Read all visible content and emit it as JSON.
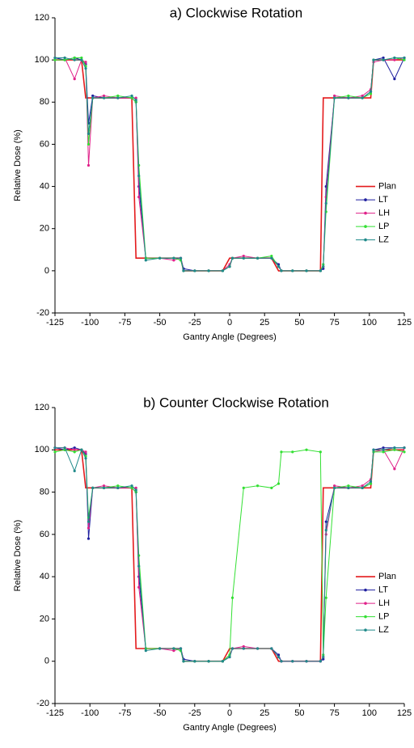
{
  "chart_data": [
    {
      "type": "line",
      "title": "a) Clockwise Rotation",
      "x_label": "Gantry Angle (Degrees)",
      "y_label": "Relative Dose (%)",
      "xlim": [
        -125,
        125
      ],
      "xticks": [
        -125,
        -100,
        -75,
        -50,
        -25,
        0,
        25,
        50,
        75,
        100,
        125
      ],
      "ylim": [
        -20,
        120
      ],
      "yticks": [
        -20,
        0,
        20,
        40,
        60,
        80,
        100,
        120
      ],
      "grid": false,
      "legend": "right",
      "x": [
        -125,
        -118,
        -111,
        -106,
        -103,
        -101,
        -98,
        -90,
        -80,
        -70,
        -67,
        -65,
        -60,
        -50,
        -40,
        -35,
        -33,
        -25,
        -15,
        -5,
        0,
        2,
        10,
        20,
        30,
        35,
        37,
        45,
        55,
        65,
        67,
        69,
        75,
        85,
        95,
        101,
        103,
        110,
        118,
        125
      ],
      "series": [
        {
          "name": "Plan",
          "color": "#e41a1c",
          "values": [
            100,
            100,
            100,
            100,
            82,
            82,
            82,
            82,
            82,
            82,
            6,
            6,
            6,
            6,
            6,
            6,
            0,
            0,
            0,
            0,
            6,
            6,
            6,
            6,
            6,
            0,
            0,
            0,
            0,
            0,
            82,
            82,
            82,
            82,
            82,
            82,
            100,
            100,
            100,
            100
          ]
        },
        {
          "name": "LT",
          "color": "#1f1f9f",
          "values": [
            101,
            100,
            101,
            100,
            98,
            70,
            83,
            82,
            82,
            82,
            80,
            40,
            6,
            6,
            6,
            6,
            1,
            0,
            0,
            0,
            2,
            6,
            6,
            6,
            6,
            3,
            0,
            0,
            0,
            0,
            1,
            40,
            82,
            82,
            82,
            85,
            100,
            101,
            91,
            101
          ]
        },
        {
          "name": "LH",
          "color": "#e0218a",
          "values": [
            101,
            101,
            91,
            100,
            99,
            50,
            82,
            83,
            82,
            82,
            82,
            35,
            6,
            6,
            5,
            6,
            0,
            0,
            0,
            0,
            3,
            6,
            7,
            6,
            6,
            2,
            0,
            0,
            0,
            0,
            2,
            35,
            83,
            82,
            83,
            86,
            99,
            100,
            100,
            101
          ]
        },
        {
          "name": "LP",
          "color": "#33e033",
          "values": [
            100,
            100,
            101,
            101,
            97,
            60,
            82,
            82,
            83,
            82,
            80,
            50,
            6,
            6,
            6,
            5,
            0,
            0,
            0,
            0,
            2,
            6,
            6,
            6,
            7,
            2,
            0,
            0,
            0,
            0,
            3,
            28,
            82,
            83,
            82,
            84,
            100,
            100,
            101,
            100
          ]
        },
        {
          "name": "LZ",
          "color": "#1f8a8a",
          "values": [
            101,
            101,
            100,
            100,
            96,
            65,
            82,
            82,
            82,
            83,
            81,
            45,
            5,
            6,
            6,
            6,
            0,
            0,
            0,
            0,
            2,
            6,
            6,
            6,
            6,
            2,
            0,
            0,
            0,
            0,
            2,
            32,
            82,
            82,
            82,
            85,
            100,
            100,
            101,
            101
          ]
        }
      ]
    },
    {
      "type": "line",
      "title": "b) Counter Clockwise Rotation",
      "x_label": "Gantry Angle (Degrees)",
      "y_label": "Relative Dose (%)",
      "xlim": [
        -125,
        125
      ],
      "xticks": [
        -125,
        -100,
        -75,
        -50,
        -25,
        0,
        25,
        50,
        75,
        100,
        125
      ],
      "ylim": [
        -20,
        120
      ],
      "yticks": [
        -20,
        0,
        20,
        40,
        60,
        80,
        100,
        120
      ],
      "grid": false,
      "legend": "right",
      "x": [
        -125,
        -118,
        -111,
        -106,
        -103,
        -101,
        -98,
        -90,
        -80,
        -70,
        -67,
        -65,
        -60,
        -50,
        -40,
        -35,
        -33,
        -25,
        -15,
        -5,
        0,
        2,
        10,
        20,
        30,
        35,
        37,
        45,
        55,
        65,
        67,
        69,
        75,
        85,
        95,
        101,
        103,
        110,
        118,
        125
      ],
      "series": [
        {
          "name": "Plan",
          "color": "#e41a1c",
          "values": [
            100,
            100,
            100,
            100,
            82,
            82,
            82,
            82,
            82,
            82,
            6,
            6,
            6,
            6,
            6,
            6,
            0,
            0,
            0,
            0,
            6,
            6,
            6,
            6,
            6,
            0,
            0,
            0,
            0,
            0,
            82,
            82,
            82,
            82,
            82,
            82,
            100,
            100,
            100,
            100
          ]
        },
        {
          "name": "LT",
          "color": "#1f1f9f",
          "values": [
            101,
            100,
            101,
            100,
            98,
            58,
            82,
            82,
            82,
            82,
            80,
            40,
            6,
            6,
            6,
            6,
            1,
            0,
            0,
            0,
            2,
            6,
            6,
            6,
            6,
            3,
            0,
            0,
            0,
            0,
            1,
            66,
            82,
            82,
            82,
            84,
            100,
            101,
            101,
            101
          ]
        },
        {
          "name": "LH",
          "color": "#e0218a",
          "values": [
            101,
            101,
            100,
            100,
            99,
            63,
            82,
            83,
            82,
            82,
            82,
            35,
            6,
            6,
            5,
            6,
            0,
            0,
            0,
            0,
            3,
            6,
            7,
            6,
            6,
            2,
            0,
            0,
            0,
            0,
            2,
            60,
            83,
            82,
            83,
            86,
            99,
            100,
            91,
            101
          ]
        },
        {
          "name": "LP",
          "color": "#33e033",
          "values": [
            99,
            100,
            99,
            100,
            97,
            68,
            82,
            82,
            83,
            82,
            80,
            50,
            6,
            6,
            6,
            5,
            0,
            0,
            0,
            0,
            3,
            30,
            82,
            83,
            82,
            84,
            99,
            99,
            100,
            99,
            3,
            30,
            82,
            83,
            82,
            84,
            99,
            99,
            100,
            99
          ]
        },
        {
          "name": "LZ",
          "color": "#1f8a8a",
          "values": [
            101,
            101,
            90,
            100,
            96,
            66,
            82,
            82,
            82,
            83,
            81,
            45,
            5,
            6,
            6,
            6,
            0,
            0,
            0,
            0,
            2,
            6,
            6,
            6,
            6,
            2,
            0,
            0,
            0,
            0,
            2,
            62,
            82,
            82,
            82,
            85,
            100,
            100,
            101,
            101
          ]
        }
      ]
    }
  ]
}
